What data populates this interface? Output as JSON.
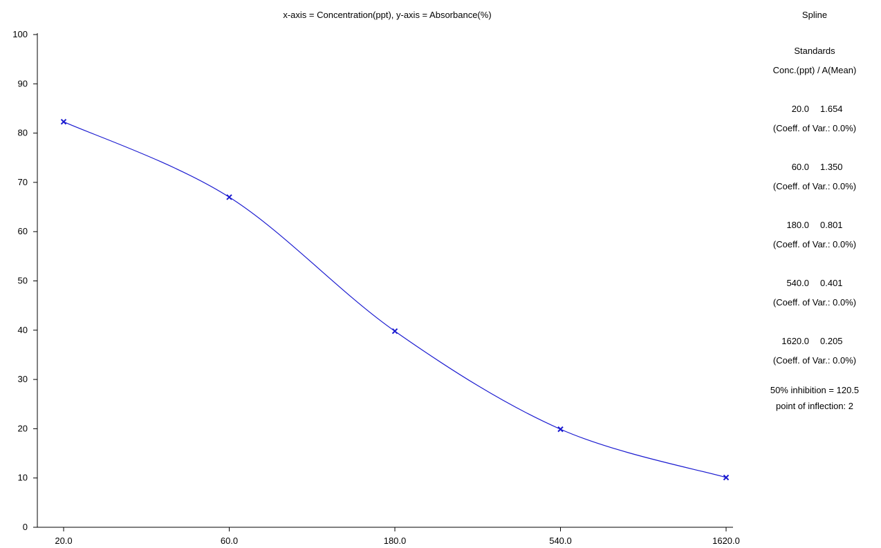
{
  "title": "x-axis = Concentration(ppt), y-axis = Absorbance(%)",
  "side_panel": {
    "method": "Spline",
    "standards_heading": "Standards",
    "columns_heading": "Conc.(ppt) / A(Mean)",
    "standards": [
      {
        "conc": "20.0",
        "mean": "1.654",
        "cv": "(Coeff. of Var.: 0.0%)"
      },
      {
        "conc": "60.0",
        "mean": "1.350",
        "cv": "(Coeff. of Var.: 0.0%)"
      },
      {
        "conc": "180.0",
        "mean": "0.801",
        "cv": "(Coeff. of Var.: 0.0%)"
      },
      {
        "conc": "540.0",
        "mean": "0.401",
        "cv": "(Coeff. of Var.: 0.0%)"
      },
      {
        "conc": "1620.0",
        "mean": "0.205",
        "cv": "(Coeff. of Var.: 0.0%)"
      }
    ],
    "inhibition": "50% inhibition = 120.5",
    "inflection": "point of inflection: 2"
  },
  "chart_data": {
    "type": "line",
    "title": "x-axis = Concentration(ppt), y-axis = Absorbance(%)",
    "x_scale": "log",
    "x": [
      20,
      60,
      180,
      540,
      1620
    ],
    "x_tick_labels": [
      "20.0",
      "60.0",
      "180.0",
      "540.0",
      "1620.0"
    ],
    "ylim": [
      0,
      100
    ],
    "y_ticks": [
      0,
      10,
      20,
      30,
      40,
      50,
      60,
      70,
      80,
      90,
      100
    ],
    "series": [
      {
        "values": [
          82.3,
          67.0,
          39.8,
          19.9,
          10.1
        ]
      }
    ],
    "marker": "x",
    "line_style": "smooth spline",
    "grid": false,
    "color": "#1a1ad0"
  }
}
